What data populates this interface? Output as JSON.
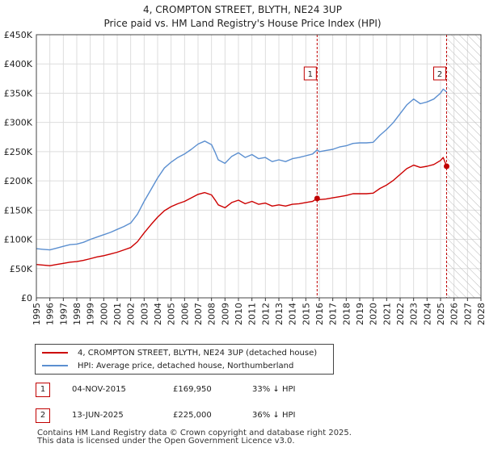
{
  "title_line1": "4, CROMPTON STREET, BLYTH, NE24 3UP",
  "title_line2": "Price paid vs. HM Land Registry's House Price Index (HPI)",
  "legend": {
    "property_label": "4, CROMPTON STREET, BLYTH, NE24 3UP (detached house)",
    "hpi_label": "HPI: Average price, detached house, Northumberland"
  },
  "transactions": [
    {
      "num": "1",
      "date": "04-NOV-2015",
      "price": "£169,950",
      "hpi": "33% ↓ HPI"
    },
    {
      "num": "2",
      "date": "13-JUN-2025",
      "price": "£225,000",
      "hpi": "36% ↓ HPI"
    }
  ],
  "footer_line1": "Contains HM Land Registry data © Crown copyright and database right 2025.",
  "footer_line2": "This data is licensed under the Open Government Licence v3.0.",
  "colors": {
    "property": "#cc0000",
    "hpi": "#5b8fd0",
    "marker": "#c00000",
    "grid": "#dddddd"
  },
  "chart_data": {
    "type": "line",
    "title": "4, CROMPTON STREET, BLYTH, NE24 3UP — Price paid vs. HM Land Registry's House Price Index (HPI)",
    "xlim": [
      1995,
      2028
    ],
    "ylim": [
      0,
      450000
    ],
    "x_ticks": [
      1995,
      1996,
      1997,
      1998,
      1999,
      2000,
      2001,
      2002,
      2003,
      2004,
      2005,
      2006,
      2007,
      2008,
      2009,
      2010,
      2011,
      2012,
      2013,
      2014,
      2015,
      2016,
      2017,
      2018,
      2019,
      2020,
      2021,
      2022,
      2023,
      2024,
      2025,
      2026,
      2027,
      2028
    ],
    "y_ticks": [
      0,
      50000,
      100000,
      150000,
      200000,
      250000,
      300000,
      350000,
      400000,
      450000
    ],
    "y_tick_labels": [
      "£0",
      "£50K",
      "£100K",
      "£150K",
      "£200K",
      "£250K",
      "£300K",
      "£350K",
      "£400K",
      "£450K"
    ],
    "hatch_from": 2025.45,
    "series": [
      {
        "name": "HPI: Average price, detached house, Northumberland",
        "x": [
          1995,
          1995.5,
          1996,
          1996.5,
          1997,
          1997.5,
          1998,
          1998.5,
          1999,
          1999.5,
          2000,
          2000.5,
          2001,
          2001.5,
          2002,
          2002.5,
          2003,
          2003.5,
          2004,
          2004.5,
          2005,
          2005.5,
          2006,
          2006.5,
          2007,
          2007.5,
          2008,
          2008.25,
          2008.5,
          2009,
          2009.5,
          2010,
          2010.5,
          2011,
          2011.5,
          2012,
          2012.5,
          2013,
          2013.5,
          2014,
          2014.5,
          2015,
          2015.5,
          2015.84,
          2016,
          2016.5,
          2017,
          2017.5,
          2018,
          2018.5,
          2019,
          2019.5,
          2020,
          2020.5,
          2021,
          2021.5,
          2022,
          2022.5,
          2023,
          2023.5,
          2024,
          2024.5,
          2025,
          2025.2,
          2025.45
        ],
        "values": [
          84000,
          83000,
          82000,
          85000,
          88000,
          91000,
          92000,
          95000,
          100000,
          104000,
          108000,
          112000,
          117000,
          122000,
          128000,
          143000,
          165000,
          185000,
          205000,
          222000,
          232000,
          240000,
          246000,
          254000,
          263000,
          268000,
          262000,
          250000,
          236000,
          230000,
          242000,
          248000,
          240000,
          245000,
          238000,
          240000,
          233000,
          236000,
          233000,
          238000,
          240000,
          243000,
          246000,
          253000,
          250000,
          252000,
          254000,
          258000,
          260000,
          264000,
          265000,
          265000,
          266000,
          278000,
          288000,
          300000,
          315000,
          330000,
          340000,
          332000,
          335000,
          340000,
          350000,
          357000,
          352000
        ]
      },
      {
        "name": "4, CROMPTON STREET, BLYTH, NE24 3UP (detached house)",
        "x": [
          1995,
          1995.5,
          1996,
          1996.5,
          1997,
          1997.5,
          1998,
          1998.5,
          1999,
          1999.5,
          2000,
          2000.5,
          2001,
          2001.5,
          2002,
          2002.5,
          2003,
          2003.5,
          2004,
          2004.5,
          2005,
          2005.5,
          2006,
          2006.5,
          2007,
          2007.5,
          2008,
          2008.25,
          2008.5,
          2009,
          2009.5,
          2010,
          2010.5,
          2011,
          2011.5,
          2012,
          2012.5,
          2013,
          2013.5,
          2014,
          2014.5,
          2015,
          2015.5,
          2015.84,
          2016,
          2016.5,
          2017,
          2017.5,
          2018,
          2018.5,
          2019,
          2019.5,
          2020,
          2020.5,
          2021,
          2021.5,
          2022,
          2022.5,
          2023,
          2023.5,
          2024,
          2024.5,
          2025,
          2025.2,
          2025.45
        ],
        "values": [
          57000,
          56000,
          55000,
          57000,
          59000,
          61000,
          62000,
          64000,
          67000,
          70000,
          72000,
          75000,
          78000,
          82000,
          86000,
          96000,
          111000,
          125000,
          138000,
          149000,
          156000,
          161000,
          165000,
          171000,
          177000,
          180000,
          176000,
          168000,
          159000,
          154000,
          163000,
          167000,
          161000,
          165000,
          160000,
          162000,
          157000,
          159000,
          157000,
          160000,
          161000,
          163000,
          165000,
          169950,
          168000,
          169000,
          171000,
          173000,
          175000,
          178000,
          178000,
          178000,
          179000,
          187000,
          193000,
          201000,
          211000,
          221000,
          227000,
          223000,
          225000,
          228000,
          235000,
          240000,
          225000
        ]
      }
    ],
    "markers": [
      {
        "label": "1",
        "x": 2015.84,
        "value": 169950
      },
      {
        "label": "2",
        "x": 2025.45,
        "value": 225000
      }
    ]
  }
}
